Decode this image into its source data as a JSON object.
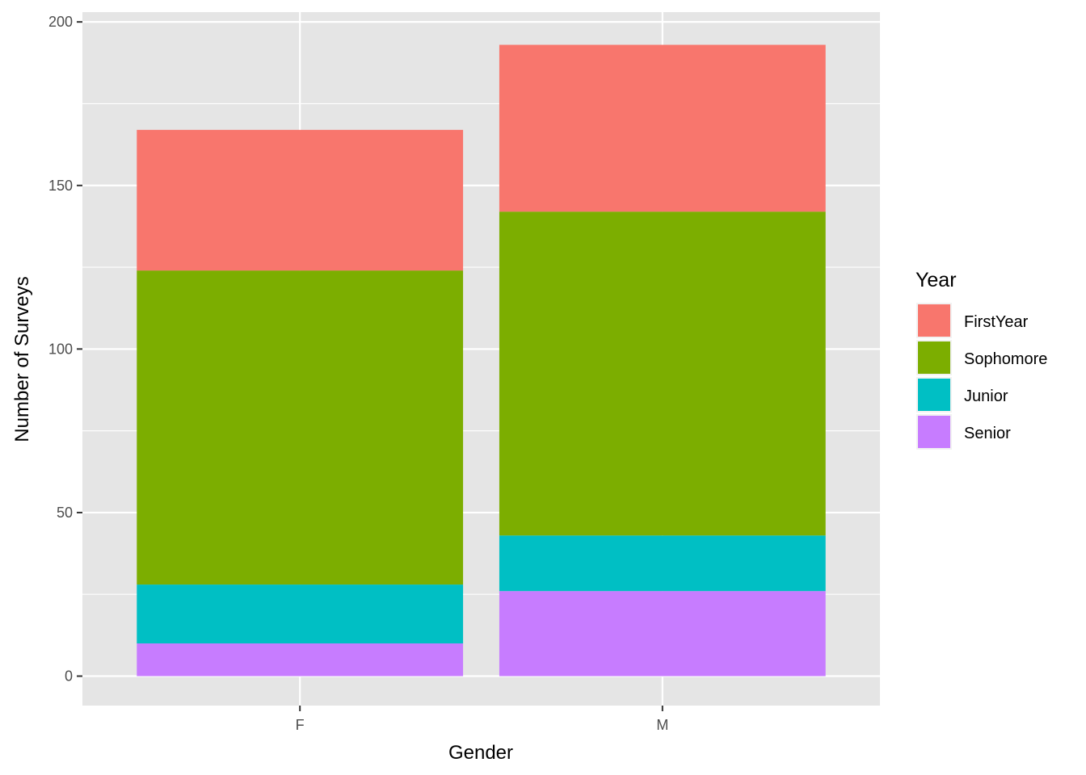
{
  "chart_data": {
    "type": "bar",
    "stacked": true,
    "title": "",
    "xlabel": "Gender",
    "ylabel": "Number of Surveys",
    "categories": [
      "F",
      "M"
    ],
    "series": [
      {
        "name": "FirstYear",
        "color": "#F8766D",
        "values": [
          43,
          51
        ]
      },
      {
        "name": "Sophomore",
        "color": "#7CAE00",
        "values": [
          96,
          99
        ]
      },
      {
        "name": "Junior",
        "color": "#00BFC4",
        "values": [
          18,
          17
        ]
      },
      {
        "name": "Senior",
        "color": "#C77CFF",
        "values": [
          10,
          26
        ]
      }
    ],
    "stack_order_bottom_to_top": [
      "Senior",
      "Junior",
      "Sophomore",
      "FirstYear"
    ],
    "ylim": [
      -9,
      203
    ],
    "yticks": [
      0,
      50,
      100,
      150,
      200
    ],
    "ytick_labels": [
      "0",
      "50",
      "100",
      "150",
      "200"
    ],
    "grid": true,
    "legend": {
      "title": "Year",
      "position": "right"
    },
    "colors": {
      "panel_background": "#E5E5E5",
      "grid": "#FFFFFF"
    }
  }
}
